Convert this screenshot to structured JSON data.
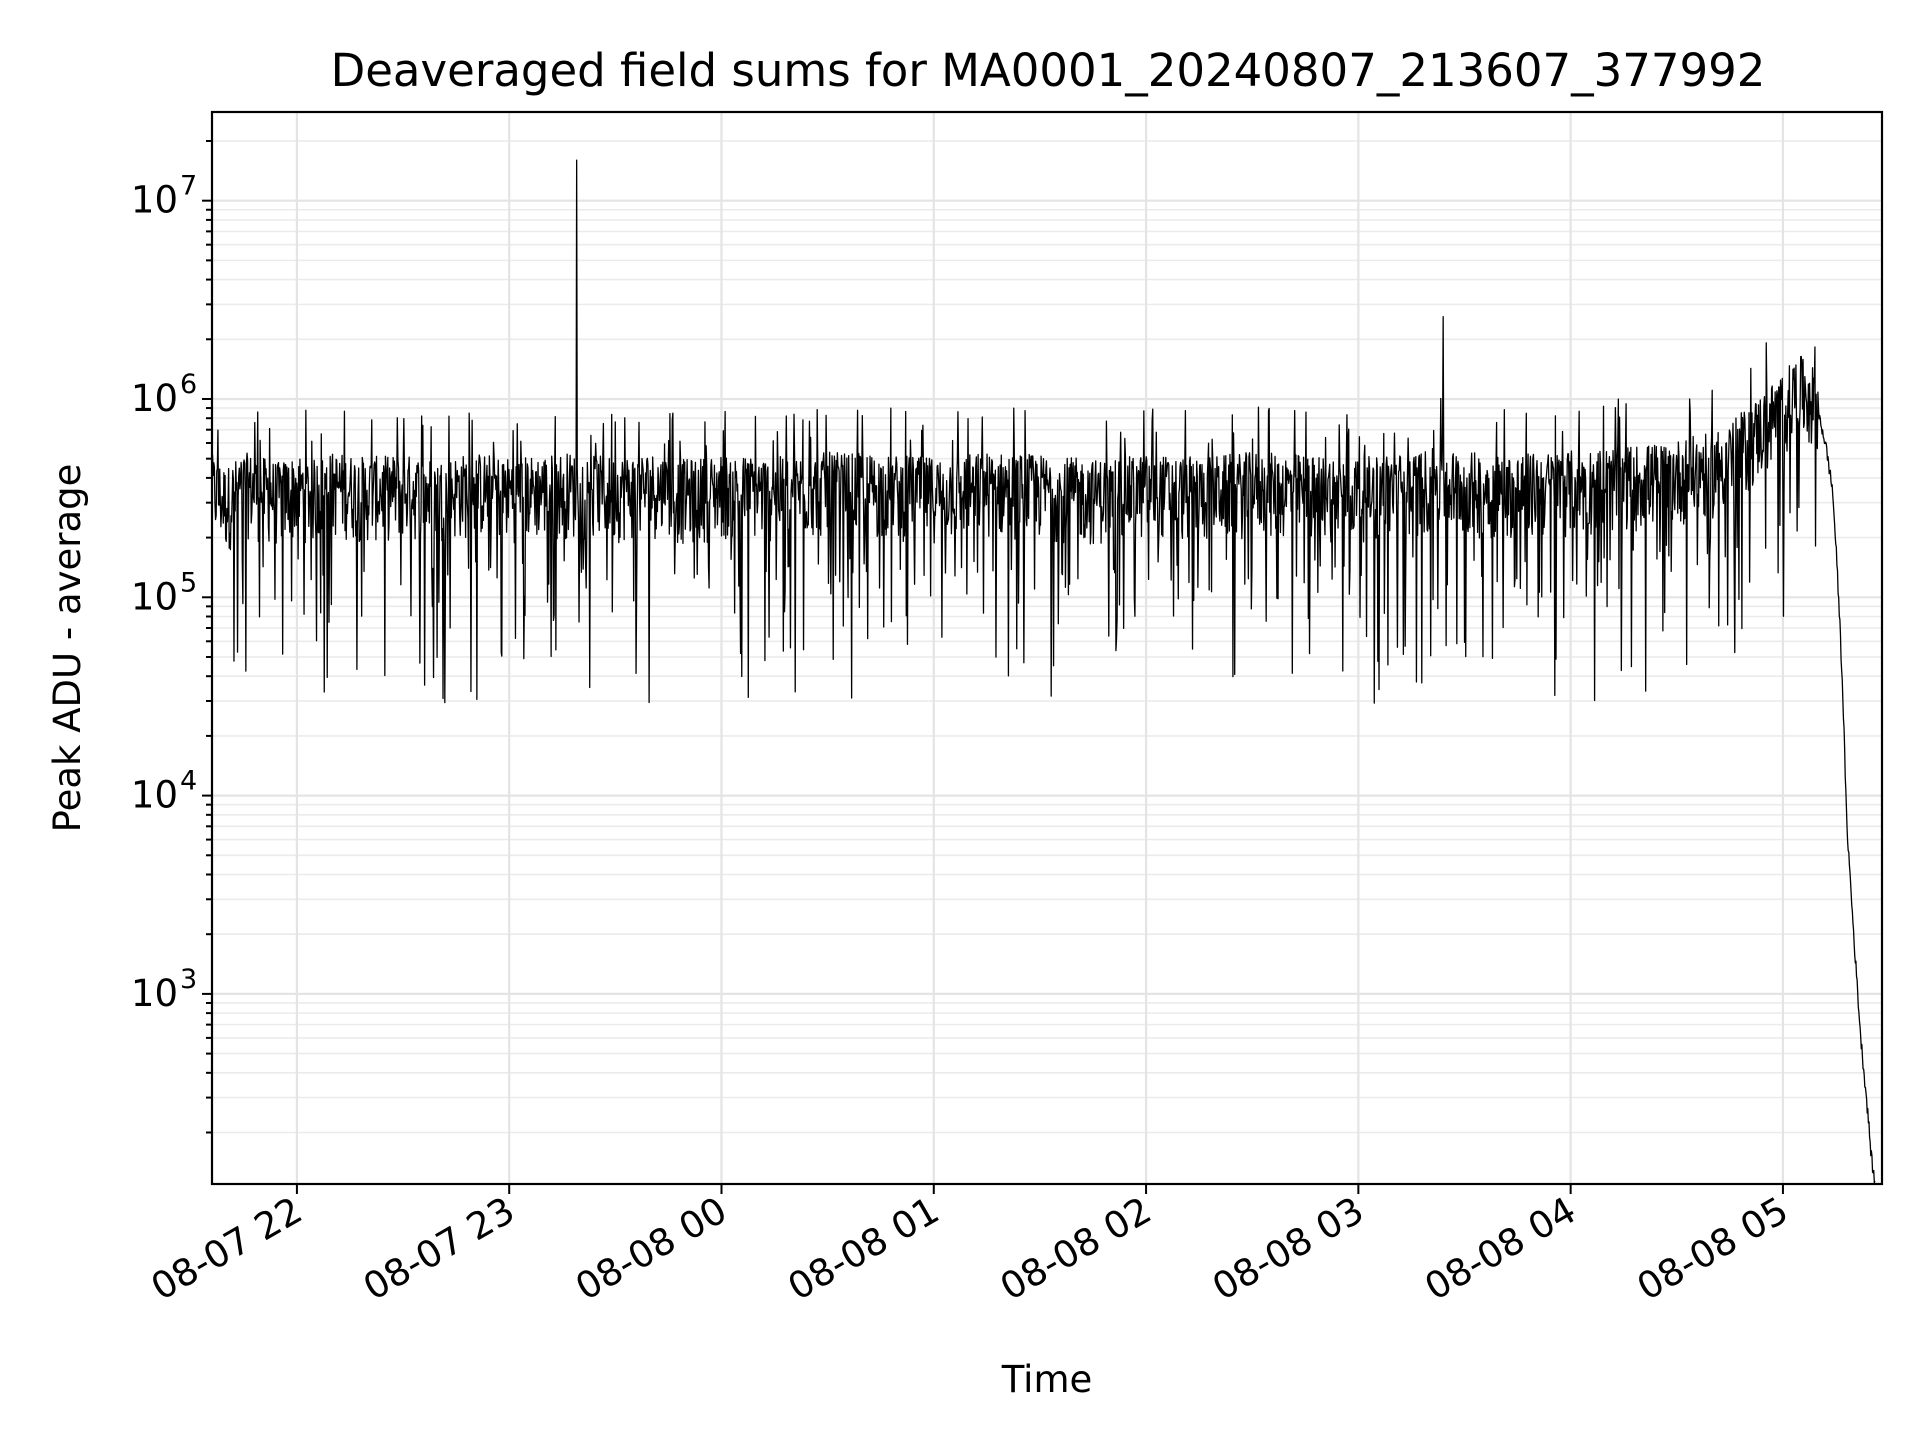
{
  "chart_data": {
    "type": "line",
    "title": "Deaveraged field sums for MA0001_20240807_213607_377992",
    "xlabel": "Time",
    "ylabel": "Peak ADU - average",
    "yscale": "log",
    "ylim": [
      110,
      28000000
    ],
    "xlim": [
      "2024-08-07 21:36",
      "2024-08-08 05:28"
    ],
    "grid": "both",
    "line_color": "#000000",
    "x_ticks": [
      {
        "value": "2024-08-07 22:00",
        "label": "08-07 22"
      },
      {
        "value": "2024-08-07 23:00",
        "label": "08-07 23"
      },
      {
        "value": "2024-08-08 00:00",
        "label": "08-08 00"
      },
      {
        "value": "2024-08-08 01:00",
        "label": "08-08 01"
      },
      {
        "value": "2024-08-08 02:00",
        "label": "08-08 02"
      },
      {
        "value": "2024-08-08 03:00",
        "label": "08-08 03"
      },
      {
        "value": "2024-08-08 04:00",
        "label": "08-08 04"
      },
      {
        "value": "2024-08-08 05:00",
        "label": "08-08 05"
      }
    ],
    "y_ticks": [
      {
        "value": 1000,
        "base": "10",
        "exp": "3"
      },
      {
        "value": 10000,
        "base": "10",
        "exp": "4"
      },
      {
        "value": 100000,
        "base": "10",
        "exp": "5"
      },
      {
        "value": 1000000,
        "base": "10",
        "exp": "6"
      },
      {
        "value": 10000000,
        "base": "10",
        "exp": "7"
      }
    ],
    "series": [
      {
        "baseline_value": 350000,
        "x": [
          "2024-08-07 21:36",
          "2024-08-07 21:40",
          "2024-08-07 21:45",
          "2024-08-07 21:50",
          "2024-08-07 21:55",
          "2024-08-07 22:00",
          "2024-08-07 22:05",
          "2024-08-07 22:10",
          "2024-08-07 22:20",
          "2024-08-07 22:30",
          "2024-08-07 22:40",
          "2024-08-07 22:50",
          "2024-08-07 23:00",
          "2024-08-07 23:10",
          "2024-08-07 23:18",
          "2024-08-07 23:19",
          "2024-08-07 23:20",
          "2024-08-07 23:30",
          "2024-08-07 23:40",
          "2024-08-07 23:50",
          "2024-08-08 00:00",
          "2024-08-08 00:15",
          "2024-08-08 00:30",
          "2024-08-08 00:45",
          "2024-08-08 01:00",
          "2024-08-08 01:15",
          "2024-08-08 01:30",
          "2024-08-08 01:45",
          "2024-08-08 02:00",
          "2024-08-08 02:15",
          "2024-08-08 02:30",
          "2024-08-08 02:45",
          "2024-08-08 03:00",
          "2024-08-08 03:15",
          "2024-08-08 03:23",
          "2024-08-08 03:24",
          "2024-08-08 03:25",
          "2024-08-08 03:40",
          "2024-08-08 03:55",
          "2024-08-08 04:10",
          "2024-08-08 04:25",
          "2024-08-08 04:40",
          "2024-08-08 04:50",
          "2024-08-08 04:55",
          "2024-08-08 05:00",
          "2024-08-08 05:03",
          "2024-08-08 05:05",
          "2024-08-08 05:08",
          "2024-08-08 05:10",
          "2024-08-08 05:12",
          "2024-08-08 05:14",
          "2024-08-08 05:15",
          "2024-08-08 05:16",
          "2024-08-08 05:17",
          "2024-08-08 05:18",
          "2024-08-08 05:20",
          "2024-08-08 05:22",
          "2024-08-08 05:24",
          "2024-08-08 05:25",
          "2024-08-08 05:26"
        ],
        "values": [
          350000,
          300000,
          360000,
          340000,
          320000,
          350000,
          330000,
          360000,
          340000,
          350000,
          330000,
          360000,
          340000,
          350000,
          360000,
          16000000,
          350000,
          340000,
          360000,
          330000,
          350000,
          340000,
          360000,
          350000,
          340000,
          360000,
          350000,
          330000,
          350000,
          340000,
          360000,
          350000,
          340000,
          360000,
          380000,
          2600000,
          370000,
          350000,
          360000,
          380000,
          400000,
          450000,
          600000,
          750000,
          900000,
          1050000,
          1100000,
          1000000,
          850000,
          600000,
          350000,
          180000,
          80000,
          30000,
          7500,
          2000,
          600,
          250,
          150,
          110
        ]
      }
    ]
  }
}
